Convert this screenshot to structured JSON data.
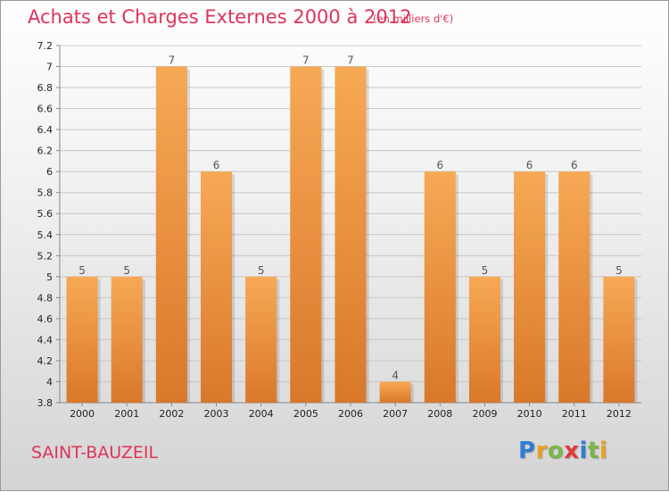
{
  "title": "Achats et Charges Externes 2000 à 2012",
  "unit_note": "(en milliers d'€)",
  "place": "SAINT-BAUZEIL",
  "brand": {
    "letters": [
      "P",
      "r",
      "o",
      "x",
      "i",
      "t",
      "i"
    ],
    "colors": [
      "#2f7fd1",
      "#e8a020",
      "#7ab648",
      "#e03a3a",
      "#2f7fd1",
      "#7ab648",
      "#e8a020"
    ]
  },
  "colors": {
    "title": "#e0335a",
    "bar_light": "#f7a955",
    "bar_dark": "#d9782a",
    "grid": "#c8c8c8"
  },
  "chart_data": {
    "type": "bar",
    "title": "Achats et Charges Externes 2000 à 2012",
    "subtitle": "(en milliers d'€)",
    "xlabel": "",
    "ylabel": "",
    "categories": [
      "2000",
      "2001",
      "2002",
      "2003",
      "2004",
      "2005",
      "2006",
      "2007",
      "2008",
      "2009",
      "2010",
      "2011",
      "2012"
    ],
    "values": [
      5,
      5,
      7,
      6,
      5,
      7,
      7,
      4,
      6,
      5,
      6,
      6,
      5
    ],
    "data_labels": [
      "5",
      "5",
      "7",
      "6",
      "5",
      "7",
      "7",
      "4",
      "6",
      "5",
      "6",
      "6",
      "5"
    ],
    "ylim": [
      3.8,
      7.2
    ],
    "y_ticks": [
      "3.8",
      "4",
      "4.2",
      "4.4",
      "4.6",
      "4.8",
      "5",
      "5.2",
      "5.4",
      "5.6",
      "5.8",
      "6",
      "6.2",
      "6.4",
      "6.6",
      "6.8",
      "7",
      "7.2"
    ],
    "y_tick_values": [
      3.8,
      4.0,
      4.2,
      4.4,
      4.6,
      4.8,
      5.0,
      5.2,
      5.4,
      5.6,
      5.8,
      6.0,
      6.2,
      6.4,
      6.6,
      6.8,
      7.0,
      7.2
    ],
    "grid": true,
    "legend": "none"
  }
}
